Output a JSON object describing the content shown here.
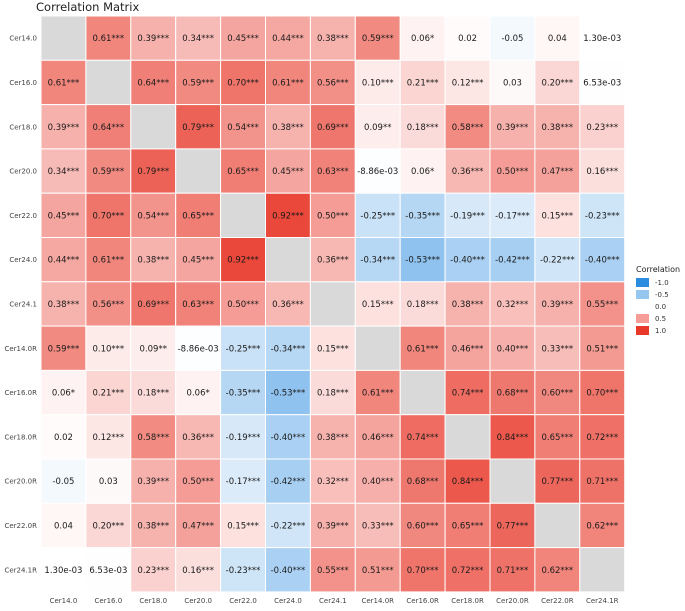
{
  "chart_data": {
    "type": "heatmap",
    "title": "Correlation Matrix",
    "rows": [
      "Cer14.0",
      "Cer16.0",
      "Cer18.0",
      "Cer20.0",
      "Cer22.0",
      "Cer24.0",
      "Cer24.1",
      "Cer14.0R",
      "Cer16.0R",
      "Cer18.0R",
      "Cer20.0R",
      "Cer22.0R",
      "Cer24.1R"
    ],
    "columns": [
      "Cer14.0",
      "Cer16.0",
      "Cer18.0",
      "Cer20.0",
      "Cer22.0",
      "Cer24.0",
      "Cer24.1",
      "Cer14.0R",
      "Cer16.0R",
      "Cer18.0R",
      "Cer20.0R",
      "Cer22.0R",
      "Cer24.1R"
    ],
    "cells": [
      [
        "",
        "0.61***",
        "0.39***",
        "0.34***",
        "0.45***",
        "0.44***",
        "0.38***",
        "0.59***",
        "0.06*",
        "0.02",
        "-0.05",
        "0.04",
        "1.30e-03"
      ],
      [
        "0.61***",
        "",
        "0.64***",
        "0.59***",
        "0.70***",
        "0.61***",
        "0.56***",
        "0.10***",
        "0.21***",
        "0.12***",
        "0.03",
        "0.20***",
        "6.53e-03"
      ],
      [
        "0.39***",
        "0.64***",
        "",
        "0.79***",
        "0.54***",
        "0.38***",
        "0.69***",
        "0.09**",
        "0.18***",
        "0.58***",
        "0.39***",
        "0.38***",
        "0.23***"
      ],
      [
        "0.34***",
        "0.59***",
        "0.79***",
        "",
        "0.65***",
        "0.45***",
        "0.63***",
        "-8.86e-03",
        "0.06*",
        "0.36***",
        "0.50***",
        "0.47***",
        "0.16***"
      ],
      [
        "0.45***",
        "0.70***",
        "0.54***",
        "0.65***",
        "",
        "0.92***",
        "0.50***",
        "-0.25***",
        "-0.35***",
        "-0.19***",
        "-0.17***",
        "0.15***",
        "-0.23***"
      ],
      [
        "0.44***",
        "0.61***",
        "0.38***",
        "0.45***",
        "0.92***",
        "",
        "0.36***",
        "-0.34***",
        "-0.53***",
        "-0.40***",
        "-0.42***",
        "-0.22***",
        "-0.40***"
      ],
      [
        "0.38***",
        "0.56***",
        "0.69***",
        "0.63***",
        "0.50***",
        "0.36***",
        "",
        "0.15***",
        "0.18***",
        "0.38***",
        "0.32***",
        "0.39***",
        "0.55***"
      ],
      [
        "0.59***",
        "0.10***",
        "0.09**",
        "-8.86e-03",
        "-0.25***",
        "-0.34***",
        "0.15***",
        "",
        "0.61***",
        "0.46***",
        "0.40***",
        "0.33***",
        "0.51***"
      ],
      [
        "0.06*",
        "0.21***",
        "0.18***",
        "0.06*",
        "-0.35***",
        "-0.53***",
        "0.18***",
        "0.61***",
        "",
        "0.74***",
        "0.68***",
        "0.60***",
        "0.70***"
      ],
      [
        "0.02",
        "0.12***",
        "0.58***",
        "0.36***",
        "-0.19***",
        "-0.40***",
        "0.38***",
        "0.46***",
        "0.74***",
        "",
        "0.84***",
        "0.65***",
        "0.72***"
      ],
      [
        "-0.05",
        "0.03",
        "0.39***",
        "0.50***",
        "-0.17***",
        "-0.42***",
        "0.32***",
        "0.40***",
        "0.68***",
        "0.84***",
        "",
        "0.77***",
        "0.71***"
      ],
      [
        "0.04",
        "0.20***",
        "0.38***",
        "0.47***",
        "0.15***",
        "-0.22***",
        "0.39***",
        "0.33***",
        "0.60***",
        "0.65***",
        "0.77***",
        "",
        "0.62***"
      ],
      [
        "1.30e-03",
        "6.53e-03",
        "0.23***",
        "0.16***",
        "-0.23***",
        "-0.40***",
        "0.55***",
        "0.51***",
        "0.70***",
        "0.72***",
        "0.71***",
        "0.62***",
        ""
      ]
    ],
    "legend": {
      "title": "Correlation",
      "entries": [
        {
          "label": "-1.0",
          "value": -1.0
        },
        {
          "label": "-0.5",
          "value": -0.5
        },
        {
          "label": "0.0",
          "value": 0.0
        },
        {
          "label": "0.5",
          "value": 0.5
        },
        {
          "label": "1.0",
          "value": 1.0
        }
      ],
      "placement": "right"
    },
    "colors": {
      "negative": "#2b8ce0",
      "zero": "#ffffff",
      "positive": "#e8382a",
      "diagonal": "#d9d9d9",
      "grid": "#ffffff"
    }
  }
}
